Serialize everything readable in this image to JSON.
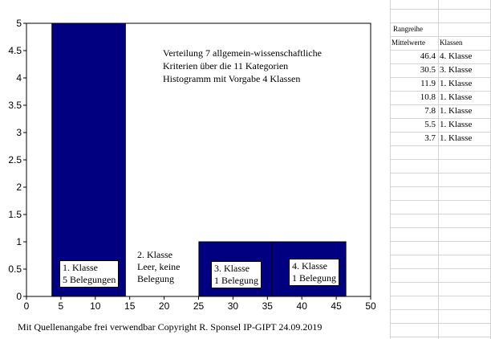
{
  "chart_data": {
    "type": "bar",
    "title": "Verteilung 7 allgemein-wissenschaftliche\nKriterien über die 11 Kategorien\nHistogramm mit Vorgabe 4 Klassen",
    "xlim": [
      0,
      50
    ],
    "ylim": [
      0,
      5
    ],
    "x_ticks": [
      "0",
      "5",
      "10",
      "15",
      "20",
      "25",
      "30",
      "35",
      "40",
      "45",
      "50"
    ],
    "y_ticks": [
      "0",
      "0.5",
      "1",
      "1.5",
      "2",
      "2.5",
      "3",
      "3.5",
      "4",
      "4.5",
      "5"
    ],
    "bars": [
      {
        "x0": 3.7,
        "x1": 14.375,
        "value": 5
      },
      {
        "x0": 14.375,
        "x1": 25.05,
        "value": 0
      },
      {
        "x0": 25.05,
        "x1": 35.725,
        "value": 1
      },
      {
        "x0": 35.725,
        "x1": 46.4,
        "value": 1
      }
    ],
    "bar_color": "#000080",
    "annotations": [
      {
        "text": "1. Klasse\n5 Belegungen",
        "boxed": true
      },
      {
        "text": "2. Klasse\nLeer, keine\nBelegung",
        "boxed": false
      },
      {
        "text": "3. Klasse\n1 Belegung",
        "boxed": true
      },
      {
        "text": "4. Klasse\n1 Belegung",
        "boxed": true
      }
    ],
    "grid": false
  },
  "footer": "Mit Quellenangabe frei verwendbar   Copyright R.  Sponsel IP-GIPT 24.09.2019",
  "sheet": {
    "heading": "Rangreihe",
    "col1_header": "Mittelwerte",
    "col2_header": "Klassen",
    "rows": [
      {
        "value": "46.4",
        "klasse": "4. Klasse"
      },
      {
        "value": "30.5",
        "klasse": "3. Klasse"
      },
      {
        "value": "11.9",
        "klasse": "1. Klasse"
      },
      {
        "value": "10.8",
        "klasse": "1. Klasse"
      },
      {
        "value": "7.8",
        "klasse": "1. Klasse"
      },
      {
        "value": "5.5",
        "klasse": "1. Klasse"
      },
      {
        "value": "3.7",
        "klasse": "1. Klasse"
      }
    ]
  }
}
